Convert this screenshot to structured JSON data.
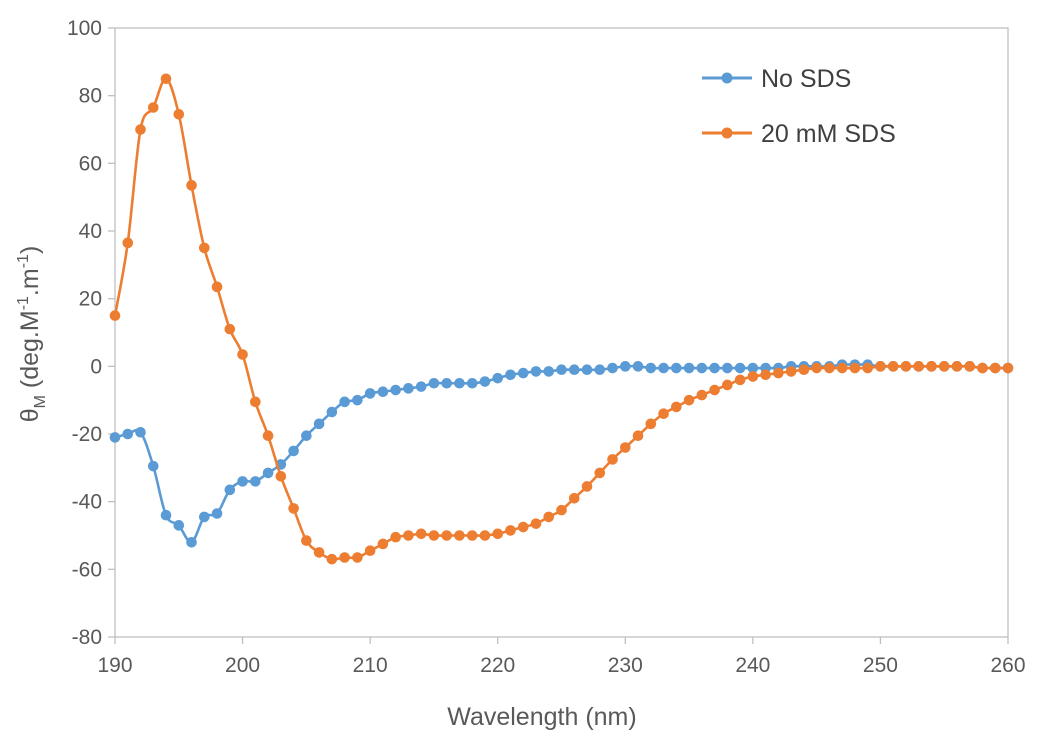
{
  "chart_data": {
    "type": "line",
    "title": "",
    "xlabel": "Wavelength (nm)",
    "ylabel": {
      "symbol": "θ",
      "subscript": "M",
      "unit_prefix": " (deg.M",
      "exp1": "-1",
      "unit_middle": ".m",
      "exp2": "-1",
      "unit_suffix": ")"
    },
    "xlim": [
      190,
      260
    ],
    "ylim": [
      -80,
      100
    ],
    "xticks": [
      190,
      200,
      210,
      220,
      230,
      240,
      250,
      260
    ],
    "yticks": [
      -80,
      -60,
      -40,
      -20,
      0,
      20,
      40,
      60,
      80,
      100
    ],
    "grid": false,
    "legend_position": "top-right",
    "x": [
      190,
      191,
      192,
      193,
      194,
      195,
      196,
      197,
      198,
      199,
      200,
      201,
      202,
      203,
      204,
      205,
      206,
      207,
      208,
      209,
      210,
      211,
      212,
      213,
      214,
      215,
      216,
      217,
      218,
      219,
      220,
      221,
      222,
      223,
      224,
      225,
      226,
      227,
      228,
      229,
      230,
      231,
      232,
      233,
      234,
      235,
      236,
      237,
      238,
      239,
      240,
      241,
      242,
      243,
      244,
      245,
      246,
      247,
      248,
      249,
      250,
      251,
      252,
      253,
      254,
      255,
      256,
      257,
      258,
      259,
      260
    ],
    "series": [
      {
        "name": "No SDS",
        "color": "#5B9BD5",
        "values": [
          -21,
          -20,
          -19.5,
          -29.5,
          -44,
          -47,
          -52,
          -44.5,
          -43.5,
          -36.5,
          -34,
          -34,
          -31.5,
          -29,
          -25,
          -20.5,
          -17,
          -13.5,
          -10.5,
          -10,
          -8,
          -7.5,
          -7,
          -6.5,
          -6,
          -5,
          -5,
          -5,
          -5,
          -4.5,
          -3.5,
          -2.5,
          -2,
          -1.5,
          -1.5,
          -1,
          -1,
          -1,
          -1,
          -0.5,
          0,
          0,
          -0.5,
          -0.5,
          -0.5,
          -0.5,
          -0.5,
          -0.5,
          -0.5,
          -0.5,
          -0.5,
          -0.5,
          -0.5,
          0,
          0,
          0,
          0,
          0.5,
          0.5,
          0.5,
          0,
          0,
          0,
          0,
          0,
          0,
          0,
          0,
          -0.5,
          -0.5,
          -0.5
        ]
      },
      {
        "name": "20 mM SDS",
        "color": "#ED7D31",
        "values": [
          15,
          36.5,
          70,
          76.5,
          85,
          74.5,
          53.5,
          35,
          23.5,
          11,
          3.5,
          -10.5,
          -20.5,
          -32.5,
          -42,
          -51.5,
          -55,
          -57,
          -56.5,
          -56.5,
          -54.5,
          -52.5,
          -50.5,
          -50,
          -49.5,
          -50,
          -50,
          -50,
          -50,
          -50,
          -49.5,
          -48.5,
          -47.5,
          -46.5,
          -44.5,
          -42.5,
          -39,
          -35.5,
          -31.5,
          -27.5,
          -24,
          -20.5,
          -17,
          -14,
          -12,
          -10,
          -8.5,
          -7,
          -5.5,
          -4,
          -3,
          -2.5,
          -2,
          -1.5,
          -1,
          -0.5,
          -0.5,
          -0.5,
          -0.5,
          -0.5,
          0,
          0,
          0,
          0,
          0,
          0,
          0,
          0,
          -0.5,
          -0.5,
          -0.5
        ]
      }
    ]
  }
}
